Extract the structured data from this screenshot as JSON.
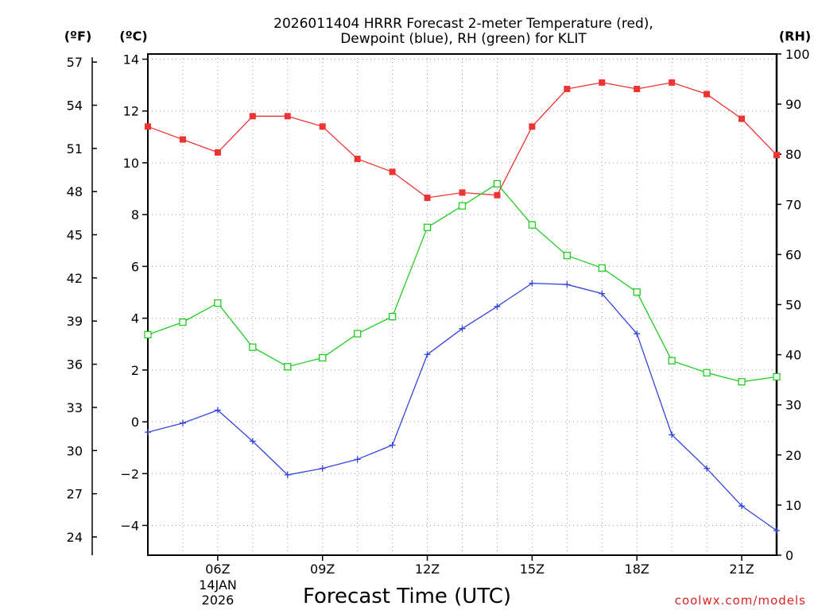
{
  "chart_data": {
    "type": "line",
    "title": "2026011404 HRRR Forecast 2-meter Temperature (red),",
    "subtitle": "Dewpoint (blue), RH (green) for KLIT",
    "xlabel": "Forecast Time (UTC)",
    "date_line1": "14JAN",
    "date_line2": "2026",
    "credit": "coolwx.com/models",
    "x": [
      4,
      5,
      6,
      7,
      8,
      9,
      10,
      11,
      12,
      13,
      14,
      15,
      16,
      17,
      18,
      19,
      20,
      21,
      22
    ],
    "xlim": [
      4,
      22
    ],
    "xticks": [
      6,
      9,
      12,
      15,
      18,
      21
    ],
    "xtick_labels": [
      "06Z",
      "09Z",
      "12Z",
      "15Z",
      "18Z",
      "21Z"
    ],
    "left_axis_c": {
      "label": "(ºC)",
      "ylim": [
        -5.15,
        14.2
      ],
      "ticks": [
        -4,
        -2,
        0,
        2,
        4,
        6,
        8,
        10,
        12,
        14
      ],
      "tick_labels": [
        "−4",
        "−2",
        "0",
        "2",
        "4",
        "6",
        "8",
        "10",
        "12",
        "14"
      ]
    },
    "left_axis_f": {
      "label": "(ºF)",
      "ticks": [
        24,
        27,
        30,
        33,
        36,
        39,
        42,
        45,
        48,
        51,
        54,
        57
      ],
      "tick_labels": [
        "24",
        "27",
        "30",
        "33",
        "36",
        "39",
        "42",
        "45",
        "48",
        "51",
        "54",
        "57"
      ]
    },
    "right_axis_rh": {
      "label": "(RH)",
      "ylim": [
        0,
        100
      ],
      "ticks": [
        0,
        10,
        20,
        30,
        40,
        50,
        60,
        70,
        80,
        90,
        100
      ],
      "tick_labels": [
        "0",
        "10",
        "20",
        "30",
        "40",
        "50",
        "60",
        "70",
        "80",
        "90",
        "100"
      ]
    },
    "series": [
      {
        "name": "2-meter Temperature",
        "axis": "left",
        "color": "#ee3333",
        "marker": "filled-square",
        "values": [
          11.4,
          10.9,
          10.4,
          11.8,
          11.8,
          11.4,
          10.15,
          9.65,
          8.65,
          8.85,
          8.75,
          11.4,
          12.85,
          13.1,
          12.85,
          13.1,
          12.65,
          11.7,
          10.3
        ]
      },
      {
        "name": "Dewpoint",
        "axis": "left",
        "color": "#3344dd",
        "marker": "plus",
        "values": [
          -0.4,
          -0.05,
          0.45,
          -0.75,
          -2.05,
          -1.8,
          -1.45,
          -0.9,
          2.6,
          3.6,
          4.45,
          5.35,
          5.3,
          4.95,
          3.4,
          -0.5,
          -1.8,
          -3.25,
          -4.2
        ]
      },
      {
        "name": "RH",
        "axis": "right",
        "color": "#22cc22",
        "marker": "open-square",
        "values": [
          44,
          46.5,
          50.3,
          41.5,
          37.6,
          39.4,
          44.2,
          47.6,
          65.4,
          69.7,
          74.1,
          65.9,
          59.8,
          57.3,
          52.5,
          38.8,
          36.4,
          34.6,
          35.6
        ]
      }
    ]
  }
}
